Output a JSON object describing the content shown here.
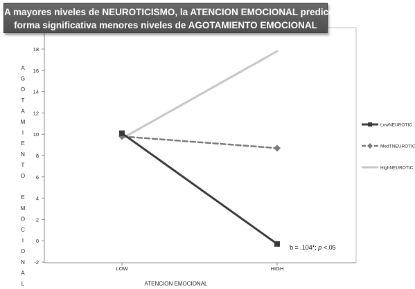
{
  "chart_data": {
    "type": "line",
    "title_lines": [
      "A mayores niveles de NEUROTICISMO, la ATENCION EMOCIONAL predice de",
      "forma significativa menores niveles de AGOTAMIENTO EMOCIONAL"
    ],
    "xlabel": "ATENCION EMOCIONAL",
    "ylabel_word1": "AGOTAMIENTO",
    "ylabel_word2": "EMOCIONAL",
    "categories": [
      "LOW",
      "HIGH"
    ],
    "ylim": [
      -2,
      18
    ],
    "yticks": [
      -2,
      0,
      2,
      4,
      6,
      8,
      10,
      12,
      14,
      16,
      18
    ],
    "grid": false,
    "legend_position": "right",
    "annotation": {
      "text_prefix": "b = .104*; ",
      "text_italic": "p",
      "text_suffix": " <.05"
    },
    "series": [
      {
        "name": "LowNEUROTIC",
        "values": [
          10.1,
          -0.3
        ],
        "color": "#3a3a3a",
        "style": "solid",
        "marker": "square"
      },
      {
        "name": "MedTNEUROTIC",
        "values": [
          9.8,
          8.7
        ],
        "color": "#7a7a7a",
        "style": "dashed",
        "marker": "diamond"
      },
      {
        "name": "HighNEUROTIC",
        "values": [
          9.6,
          17.8
        ],
        "color": "#c6c6c6",
        "style": "solid",
        "marker": "none"
      }
    ]
  }
}
